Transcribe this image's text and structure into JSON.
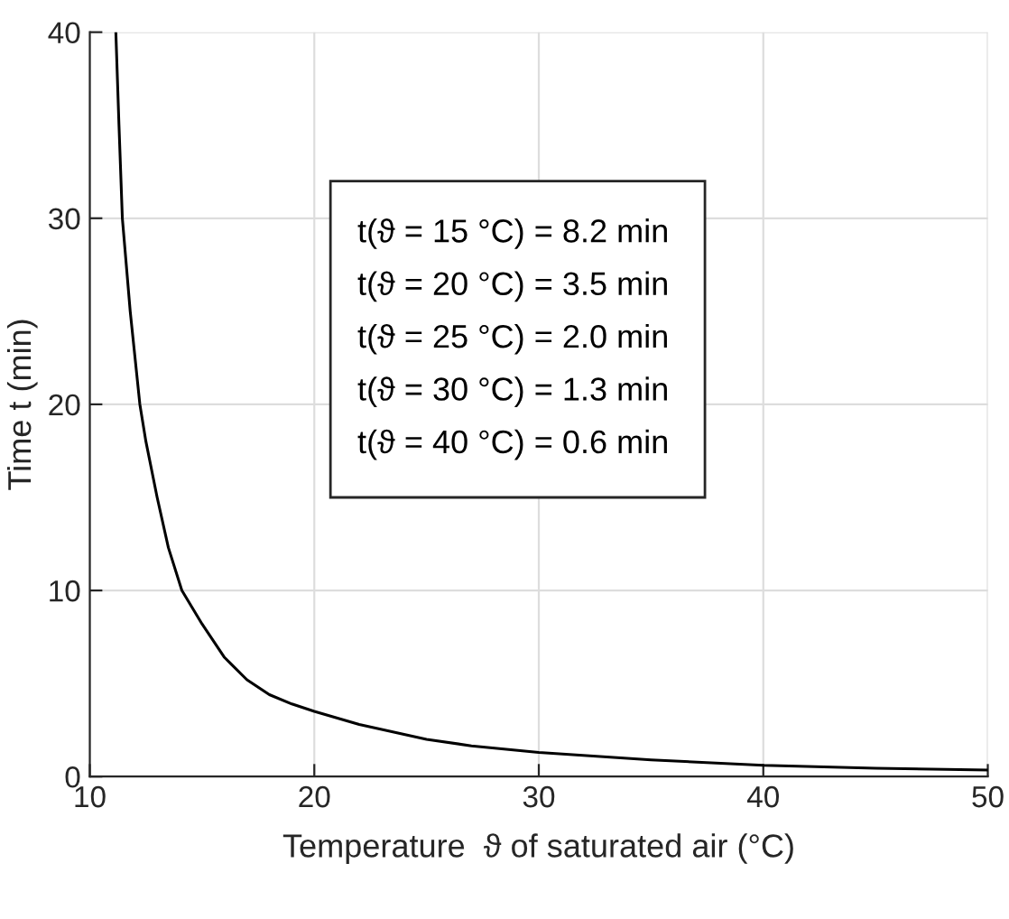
{
  "chart_data": {
    "type": "line",
    "xlabel": "Temperature  ϑ of saturated air (°C)",
    "ylabel": "Time t (min)",
    "x": [
      11.16,
      11.3,
      11.45,
      11.8,
      12.23,
      12.5,
      13,
      13.5,
      14.1,
      15,
      16,
      17,
      18,
      19,
      20,
      22,
      25,
      27,
      30,
      35,
      40,
      45,
      50
    ],
    "series": [
      {
        "color": "#000000",
        "values": [
          40,
          35,
          30,
          25,
          20,
          18,
          15,
          12.3,
          10,
          8.2,
          6.4,
          5.2,
          4.4,
          3.9,
          3.5,
          2.8,
          2.0,
          1.65,
          1.3,
          0.9,
          0.6,
          0.45,
          0.35
        ]
      }
    ],
    "xlim": [
      10,
      50
    ],
    "ylim": [
      0,
      40
    ],
    "xticks": [
      10,
      20,
      30,
      40,
      50
    ],
    "yticks": [
      0,
      10,
      20,
      30,
      40
    ],
    "grid": true,
    "annotations": [
      "t(ϑ = 15 °C) = 8.2 min",
      "t(ϑ = 20 °C) = 3.5 min",
      "t(ϑ = 25 °C) = 2.0 min",
      "t(ϑ = 30 °C) = 1.3 min",
      "t(ϑ = 40 °C) = 0.6 min"
    ]
  }
}
